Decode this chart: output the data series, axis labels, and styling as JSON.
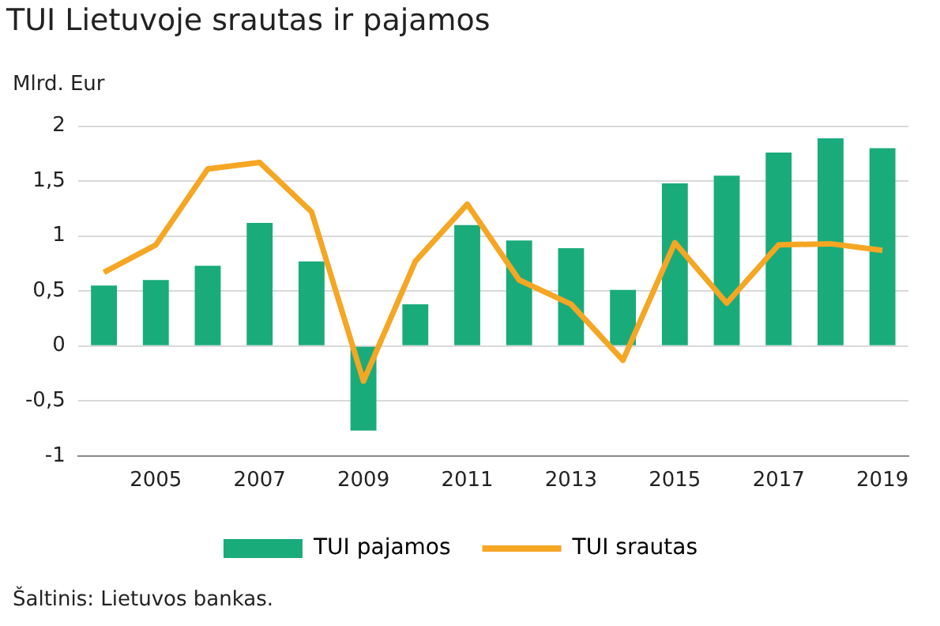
{
  "chart_data": {
    "type": "bar",
    "title": "TUI Lietuvoje srautas ir pajamos",
    "ylabel": "Mlrd. Eur",
    "categories": [
      null,
      "2005",
      null,
      "2007",
      null,
      "2009",
      null,
      "2011",
      null,
      "2013",
      null,
      "2015",
      null,
      "2017",
      null,
      "2019"
    ],
    "series": [
      {
        "name": "TUI pajamos",
        "color": "#1aab7a",
        "values": [
          0.55,
          0.6,
          0.73,
          1.12,
          0.77,
          -0.77,
          0.38,
          1.1,
          0.96,
          0.89,
          0.51,
          1.48,
          1.55,
          1.76,
          1.89,
          1.8
        ]
      },
      {
        "name": "TUI srautas",
        "type": "line",
        "color": "#f5a623",
        "values": [
          0.67,
          0.92,
          1.61,
          1.67,
          1.22,
          -0.32,
          0.77,
          1.29,
          0.6,
          0.38,
          -0.13,
          0.94,
          0.39,
          0.92,
          0.93,
          0.87
        ]
      }
    ],
    "ylim": [
      -1,
      2
    ],
    "yticks": [
      {
        "value": -1,
        "label": "-1"
      },
      {
        "value": -0.5,
        "label": "-0,5"
      },
      {
        "value": 0,
        "label": "0"
      },
      {
        "value": 0.5,
        "label": "0,5"
      },
      {
        "value": 1,
        "label": "1"
      },
      {
        "value": 1.5,
        "label": "1,5"
      },
      {
        "value": 2,
        "label": "2"
      }
    ],
    "grid": "y",
    "legend": "bottom",
    "marker": "none",
    "annotations": [
      "Šaltinis: Lietuvos bankas."
    ]
  }
}
